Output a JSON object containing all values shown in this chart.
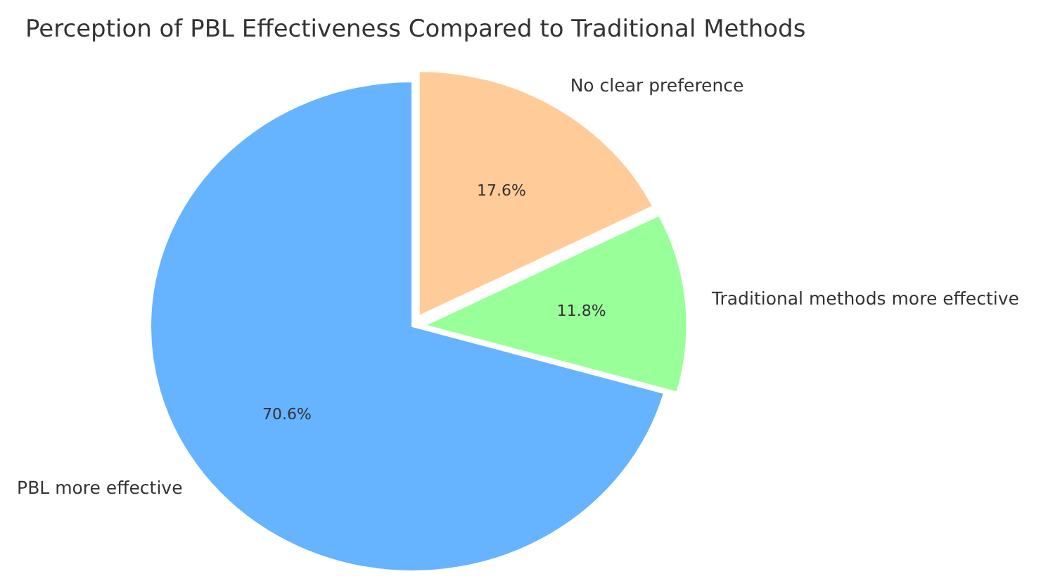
{
  "chart_data": {
    "type": "pie",
    "title": "Perception of PBL Effectiveness Compared to Traditional Methods",
    "categories": [
      "PBL more effective",
      "Traditional methods more effective",
      "No clear preference"
    ],
    "values": [
      70.6,
      11.8,
      17.6
    ],
    "colors": [
      "#66b3ff",
      "#99ff99",
      "#ffcc99"
    ],
    "value_labels": [
      "70.6%",
      "11.8%",
      "17.6%"
    ]
  }
}
